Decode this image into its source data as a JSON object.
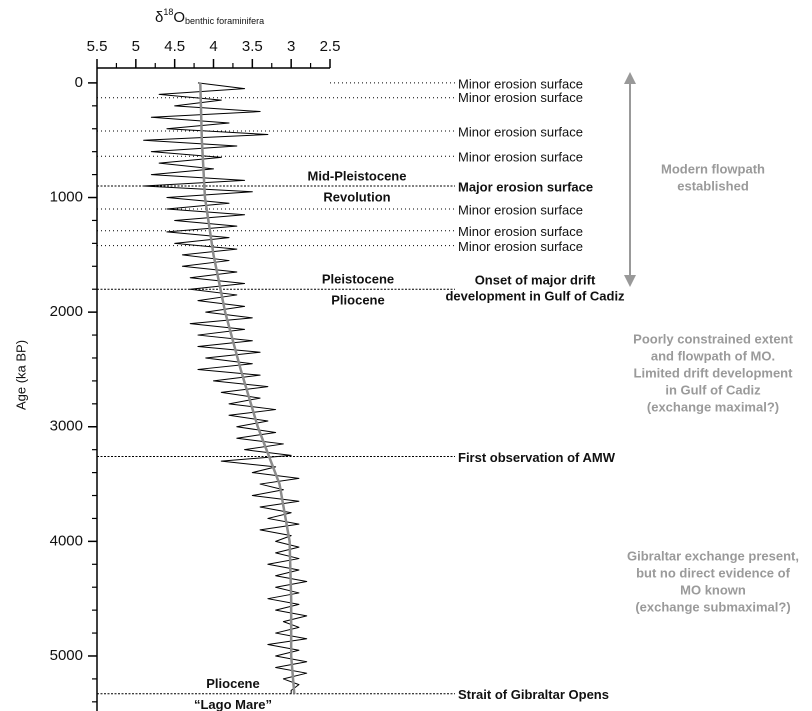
{
  "chart_data": {
    "type": "line",
    "x_label": {
      "delta": "δ",
      "sup": "18",
      "base": "O",
      "sub": "benthic foraminifera"
    },
    "y_label": "Age (ka BP)",
    "xlim": [
      5.5,
      2.5
    ],
    "xticks": [
      5.5,
      5,
      4.5,
      4,
      3.5,
      3,
      2.5
    ],
    "x_minor_ticks": [
      5.25,
      4.75,
      4.25,
      3.75,
      3.25,
      2.75
    ],
    "ylim": [
      -130,
      5480
    ],
    "yticks": [
      0,
      1000,
      2000,
      3000,
      4000,
      5000
    ],
    "y_minor_ticks": [
      200,
      400,
      600,
      800,
      1200,
      1400,
      1600,
      1800,
      2200,
      2400,
      2600,
      2800,
      3200,
      3400,
      3600,
      3800,
      4200,
      4400,
      4600,
      4800,
      5200,
      5400
    ],
    "series": [
      {
        "color": "#000000",
        "width": 1,
        "y": [
          0,
          50,
          100,
          150,
          200,
          250,
          300,
          350,
          400,
          450,
          500,
          550,
          600,
          650,
          700,
          750,
          800,
          850,
          900,
          950,
          1000,
          1050,
          1100,
          1150,
          1200,
          1250,
          1300,
          1350,
          1400,
          1450,
          1500,
          1550,
          1600,
          1650,
          1700,
          1750,
          1800,
          1850,
          1900,
          1950,
          2000,
          2050,
          2100,
          2150,
          2200,
          2250,
          2300,
          2350,
          2400,
          2450,
          2500,
          2550,
          2600,
          2650,
          2700,
          2750,
          2800,
          2850,
          2900,
          2950,
          3000,
          3050,
          3100,
          3150,
          3200,
          3250,
          3300,
          3350,
          3400,
          3450,
          3500,
          3550,
          3600,
          3650,
          3700,
          3750,
          3800,
          3850,
          3900,
          3950,
          4000,
          4050,
          4100,
          4150,
          4200,
          4250,
          4300,
          4350,
          4400,
          4450,
          4500,
          4550,
          4600,
          4650,
          4700,
          4750,
          4800,
          4850,
          4900,
          4950,
          5000,
          5050,
          5100,
          5150,
          5200,
          5250,
          5300,
          5330
        ],
        "values": [
          4.2,
          3.6,
          4.7,
          3.9,
          4.5,
          3.4,
          4.8,
          3.8,
          4.6,
          3.3,
          4.9,
          3.7,
          4.8,
          3.9,
          4.7,
          4.0,
          4.8,
          3.6,
          4.9,
          3.5,
          4.6,
          3.8,
          4.6,
          3.6,
          4.5,
          3.7,
          4.6,
          3.8,
          4.5,
          3.7,
          4.4,
          3.8,
          4.4,
          3.7,
          4.3,
          3.6,
          4.3,
          3.7,
          4.2,
          3.6,
          4.1,
          3.5,
          4.3,
          3.6,
          4.2,
          3.5,
          4.2,
          3.4,
          4.1,
          3.5,
          4.2,
          3.4,
          4.0,
          3.3,
          3.9,
          3.4,
          3.8,
          3.2,
          3.8,
          3.3,
          3.7,
          3.2,
          3.7,
          3.1,
          3.6,
          3.0,
          3.9,
          3.2,
          3.5,
          2.9,
          3.4,
          3.1,
          3.5,
          2.9,
          3.4,
          3.0,
          3.3,
          2.9,
          3.4,
          3.0,
          3.2,
          2.9,
          3.2,
          2.9,
          3.3,
          2.9,
          3.2,
          2.8,
          3.2,
          2.9,
          3.3,
          2.9,
          3.2,
          2.8,
          3.1,
          2.9,
          3.2,
          2.8,
          3.3,
          2.9,
          3.2,
          2.8,
          3.2,
          2.8,
          3.1,
          2.9,
          3.0,
          3.0
        ]
      },
      {
        "color": "#8c8c8c",
        "width": 2.5,
        "y": [
          0,
          500,
          1000,
          1500,
          2000,
          2500,
          3000,
          3500,
          4000,
          4500,
          5000,
          5330
        ],
        "values": [
          4.17,
          4.15,
          4.11,
          4.0,
          3.85,
          3.65,
          3.43,
          3.15,
          3.02,
          3.0,
          3.0,
          2.96
        ]
      }
    ],
    "annotations": [
      {
        "age": 0,
        "label": "Minor erosion surface",
        "bold": false
      },
      {
        "age": 130,
        "label": "Minor erosion surface",
        "bold": false
      },
      {
        "age": 420,
        "label": "Minor erosion surface",
        "bold": false
      },
      {
        "age": 640,
        "label": "Minor erosion surface",
        "bold": false
      },
      {
        "age": 900,
        "label": "Major erosion surface",
        "bold": true
      },
      {
        "age": 1100,
        "label": "Minor erosion surface",
        "bold": false
      },
      {
        "age": 1290,
        "label": "Minor erosion surface",
        "bold": false
      },
      {
        "age": 1420,
        "label": "Minor erosion surface",
        "bold": false
      },
      {
        "age": 1800,
        "label": [
          "Onset of major drift",
          "development in Gulf of Cadiz"
        ],
        "bold": true
      },
      {
        "age": 3260,
        "label": "First observation of AMW",
        "bold": true
      },
      {
        "age": 5330,
        "label": "Strait of Gibraltar Opens",
        "bold": true
      }
    ],
    "period_labels": [
      {
        "age": 900,
        "above": "Mid-Pleistocene",
        "below": "Revolution"
      },
      {
        "age": 1800,
        "above": "Pleistocene",
        "below": "Pliocene"
      },
      {
        "age": 5330,
        "above": "Pliocene",
        "below": "“Lago Mare”"
      }
    ],
    "side_notes": [
      [
        "Modern flowpath",
        "established"
      ],
      [
        "Poorly constrained extent",
        "and flowpath of MO.",
        "Limited drift development",
        "in Gulf of Cadiz",
        "(exchange maximal?)"
      ],
      [
        "Gibraltar exchange present,",
        "but no direct evidence of",
        "MO known",
        "(exchange submaximal?)"
      ]
    ]
  }
}
